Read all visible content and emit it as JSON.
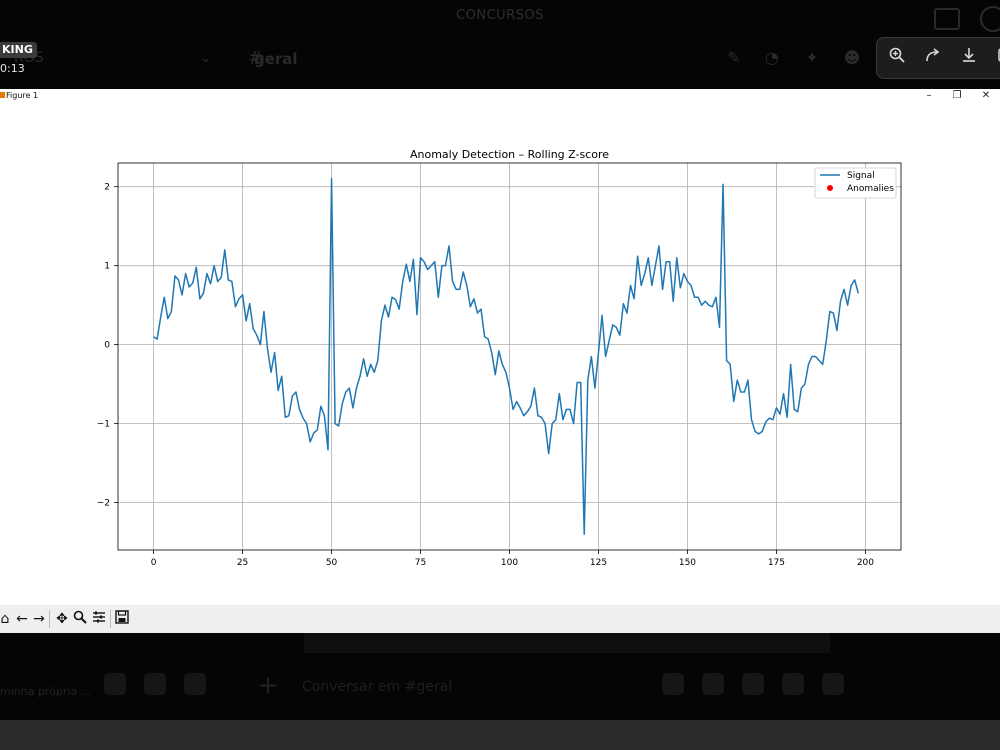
{
  "app": {
    "server_title": "CONCURSOS",
    "server_partial": "ROS",
    "channel_name": "geral",
    "rec_badge": "KING",
    "rec_time": "0:13"
  },
  "bottom": {
    "user_name": "minha própria ...",
    "message_placeholder": "Conversar em #geral"
  },
  "window": {
    "title": "Figure 1",
    "min": "–",
    "max": "❐",
    "close": "✕"
  },
  "icons": {
    "zoom_in": "zoom-in-icon",
    "share": "share-icon",
    "download": "download-icon",
    "copy": "copy-icon"
  },
  "chart_data": {
    "type": "line",
    "title": "Anomaly Detection – Rolling Z-score",
    "xlabel": "",
    "ylabel": "",
    "xlim": [
      -10,
      210
    ],
    "ylim": [
      -2.6,
      2.3
    ],
    "xticks": [
      0,
      25,
      50,
      75,
      100,
      125,
      150,
      175,
      200
    ],
    "yticks": [
      -2,
      -1,
      0,
      1,
      2
    ],
    "grid": true,
    "legend": {
      "placement": "top-right",
      "entries": [
        "Signal",
        "Anomalies"
      ]
    },
    "series": [
      {
        "name": "Signal",
        "color": "#1f77b4",
        "x_start": 0,
        "values": [
          0.1,
          0.07,
          0.35,
          0.6,
          0.33,
          0.42,
          0.87,
          0.82,
          0.63,
          0.9,
          0.73,
          0.78,
          0.98,
          0.58,
          0.65,
          0.9,
          0.77,
          1.0,
          0.8,
          0.85,
          1.2,
          0.82,
          0.8,
          0.48,
          0.58,
          0.63,
          0.3,
          0.52,
          0.2,
          0.12,
          0.0,
          0.42,
          -0.05,
          -0.35,
          -0.1,
          -0.58,
          -0.4,
          -0.92,
          -0.9,
          -0.65,
          -0.6,
          -0.82,
          -0.93,
          -1.0,
          -1.23,
          -1.12,
          -1.08,
          -0.78,
          -0.9,
          -1.33,
          2.1,
          -1.0,
          -1.03,
          -0.75,
          -0.6,
          -0.55,
          -0.8,
          -0.55,
          -0.4,
          -0.18,
          -0.4,
          -0.25,
          -0.35,
          -0.2,
          0.3,
          0.5,
          0.35,
          0.6,
          0.57,
          0.45,
          0.8,
          1.02,
          0.8,
          1.08,
          0.38,
          1.1,
          1.05,
          0.95,
          1.0,
          1.05,
          0.6,
          1.0,
          1.0,
          1.25,
          0.8,
          0.7,
          0.7,
          0.92,
          0.75,
          0.48,
          0.58,
          0.4,
          0.45,
          0.1,
          0.07,
          -0.1,
          -0.38,
          -0.08,
          -0.25,
          -0.35,
          -0.55,
          -0.82,
          -0.72,
          -0.8,
          -0.9,
          -0.85,
          -0.78,
          -0.55,
          -0.9,
          -0.92,
          -1.0,
          -1.38,
          -1.0,
          -0.95,
          -0.62,
          -0.95,
          -0.82,
          -0.82,
          -1.0,
          -0.48,
          -0.48,
          -2.4,
          -0.45,
          -0.15,
          -0.55,
          -0.1,
          0.37,
          -0.15,
          0.05,
          0.25,
          0.22,
          0.12,
          0.52,
          0.4,
          0.75,
          0.58,
          1.12,
          0.75,
          0.9,
          1.1,
          0.75,
          1.0,
          1.25,
          0.7,
          1.05,
          1.05,
          0.55,
          1.1,
          0.72,
          0.9,
          0.8,
          0.75,
          0.6,
          0.6,
          0.5,
          0.55,
          0.5,
          0.48,
          0.6,
          0.22,
          2.03,
          -0.2,
          -0.25,
          -0.72,
          -0.45,
          -0.6,
          -0.6,
          -0.45,
          -0.95,
          -1.1,
          -1.13,
          -1.1,
          -0.98,
          -0.93,
          -0.95,
          -0.8,
          -0.88,
          -0.62,
          -0.92,
          -0.25,
          -0.82,
          -0.85,
          -0.55,
          -0.5,
          -0.25,
          -0.15,
          -0.15,
          -0.2,
          -0.25,
          0.05,
          0.42,
          0.4,
          0.18,
          0.55,
          0.7,
          0.5,
          0.75,
          0.82,
          0.65
        ]
      }
    ],
    "anomalies": [],
    "anomaly_color": "#ff0000"
  }
}
